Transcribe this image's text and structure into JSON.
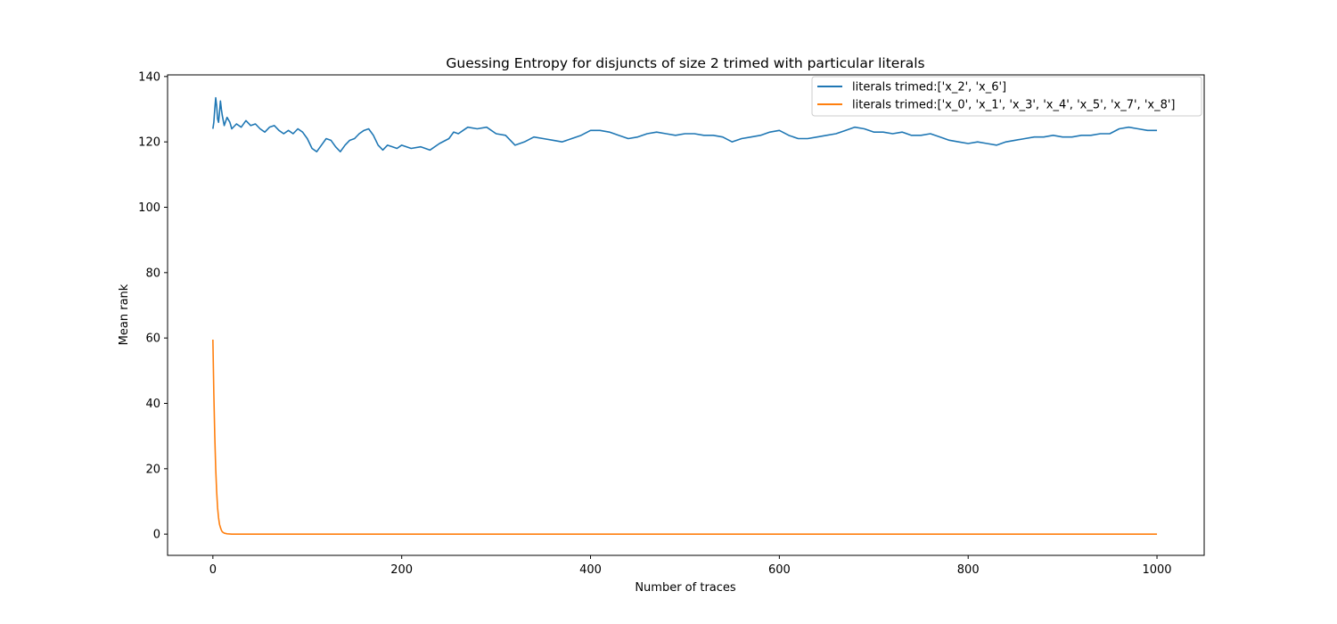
{
  "chart_data": {
    "type": "line",
    "title": "Guessing Entropy for disjuncts of size 2 trimed with particular literals",
    "xlabel": "Number of traces",
    "ylabel": "Mean rank",
    "xlim": [
      -48,
      1050
    ],
    "ylim": [
      -6.5,
      140.5
    ],
    "xticks": [
      0,
      200,
      400,
      600,
      800,
      1000
    ],
    "yticks": [
      0,
      20,
      40,
      60,
      80,
      100,
      120,
      140
    ],
    "grid": false,
    "legend_position": "top-right",
    "series": [
      {
        "name": "literals trimed:['x_2', 'x_6']",
        "color": "#1f77b4",
        "points": [
          [
            0,
            124
          ],
          [
            1,
            126
          ],
          [
            2,
            130
          ],
          [
            3,
            133.5
          ],
          [
            4,
            131
          ],
          [
            5,
            127
          ],
          [
            6,
            126
          ],
          [
            7,
            129
          ],
          [
            8,
            132.5
          ],
          [
            9,
            130
          ],
          [
            10,
            128
          ],
          [
            12,
            125
          ],
          [
            15,
            127.5
          ],
          [
            18,
            126
          ],
          [
            20,
            124
          ],
          [
            25,
            125.5
          ],
          [
            30,
            124.5
          ],
          [
            35,
            126.5
          ],
          [
            40,
            125
          ],
          [
            45,
            125.5
          ],
          [
            50,
            124
          ],
          [
            55,
            123
          ],
          [
            60,
            124.5
          ],
          [
            65,
            125
          ],
          [
            70,
            123.5
          ],
          [
            75,
            122.5
          ],
          [
            80,
            123.5
          ],
          [
            85,
            122.5
          ],
          [
            90,
            124
          ],
          [
            95,
            123
          ],
          [
            100,
            121
          ],
          [
            105,
            118
          ],
          [
            110,
            117
          ],
          [
            115,
            119
          ],
          [
            120,
            121
          ],
          [
            125,
            120.5
          ],
          [
            130,
            118.5
          ],
          [
            135,
            117
          ],
          [
            140,
            119
          ],
          [
            145,
            120.5
          ],
          [
            150,
            121
          ],
          [
            155,
            122.5
          ],
          [
            160,
            123.5
          ],
          [
            165,
            124
          ],
          [
            170,
            122
          ],
          [
            175,
            119
          ],
          [
            180,
            117.5
          ],
          [
            185,
            119
          ],
          [
            190,
            118.5
          ],
          [
            195,
            118
          ],
          [
            200,
            119
          ],
          [
            210,
            118
          ],
          [
            220,
            118.5
          ],
          [
            230,
            117.5
          ],
          [
            240,
            119.5
          ],
          [
            250,
            121
          ],
          [
            255,
            123
          ],
          [
            260,
            122.5
          ],
          [
            265,
            123.5
          ],
          [
            270,
            124.5
          ],
          [
            280,
            124
          ],
          [
            290,
            124.5
          ],
          [
            300,
            122.5
          ],
          [
            310,
            122
          ],
          [
            320,
            119
          ],
          [
            330,
            120
          ],
          [
            340,
            121.5
          ],
          [
            350,
            121
          ],
          [
            360,
            120.5
          ],
          [
            370,
            120
          ],
          [
            380,
            121
          ],
          [
            390,
            122
          ],
          [
            400,
            123.5
          ],
          [
            410,
            123.5
          ],
          [
            420,
            123
          ],
          [
            430,
            122
          ],
          [
            440,
            121
          ],
          [
            450,
            121.5
          ],
          [
            460,
            122.5
          ],
          [
            470,
            123
          ],
          [
            480,
            122.5
          ],
          [
            490,
            122
          ],
          [
            500,
            122.5
          ],
          [
            510,
            122.5
          ],
          [
            520,
            122
          ],
          [
            530,
            122
          ],
          [
            540,
            121.5
          ],
          [
            550,
            120
          ],
          [
            560,
            121
          ],
          [
            570,
            121.5
          ],
          [
            580,
            122
          ],
          [
            590,
            123
          ],
          [
            600,
            123.5
          ],
          [
            610,
            122
          ],
          [
            620,
            121
          ],
          [
            630,
            121
          ],
          [
            640,
            121.5
          ],
          [
            650,
            122
          ],
          [
            660,
            122.5
          ],
          [
            670,
            123.5
          ],
          [
            680,
            124.5
          ],
          [
            690,
            124
          ],
          [
            700,
            123
          ],
          [
            710,
            123
          ],
          [
            720,
            122.5
          ],
          [
            730,
            123
          ],
          [
            740,
            122
          ],
          [
            750,
            122
          ],
          [
            760,
            122.5
          ],
          [
            770,
            121.5
          ],
          [
            780,
            120.5
          ],
          [
            790,
            120
          ],
          [
            800,
            119.5
          ],
          [
            810,
            120
          ],
          [
            820,
            119.5
          ],
          [
            830,
            119
          ],
          [
            840,
            120
          ],
          [
            850,
            120.5
          ],
          [
            860,
            121
          ],
          [
            870,
            121.5
          ],
          [
            880,
            121.5
          ],
          [
            890,
            122
          ],
          [
            900,
            121.5
          ],
          [
            910,
            121.5
          ],
          [
            920,
            122
          ],
          [
            930,
            122
          ],
          [
            940,
            122.5
          ],
          [
            950,
            122.5
          ],
          [
            960,
            124
          ],
          [
            970,
            124.5
          ],
          [
            980,
            124
          ],
          [
            990,
            123.5
          ],
          [
            1000,
            123.5
          ]
        ]
      },
      {
        "name": "literals trimed:['x_0', 'x_1', 'x_3', 'x_4', 'x_5', 'x_7', 'x_8']",
        "color": "#ff7f0e",
        "points": [
          [
            0,
            59.5
          ],
          [
            1,
            43
          ],
          [
            2,
            30
          ],
          [
            3,
            20
          ],
          [
            4,
            13
          ],
          [
            5,
            8
          ],
          [
            6,
            5
          ],
          [
            7,
            3
          ],
          [
            8,
            2
          ],
          [
            9,
            1.2
          ],
          [
            10,
            0.7
          ],
          [
            12,
            0.3
          ],
          [
            15,
            0.1
          ],
          [
            20,
            0
          ],
          [
            50,
            0
          ],
          [
            100,
            0
          ],
          [
            200,
            0
          ],
          [
            300,
            0
          ],
          [
            400,
            0
          ],
          [
            500,
            0
          ],
          [
            600,
            0
          ],
          [
            700,
            0
          ],
          [
            800,
            0
          ],
          [
            900,
            0
          ],
          [
            1000,
            0
          ]
        ]
      }
    ]
  }
}
